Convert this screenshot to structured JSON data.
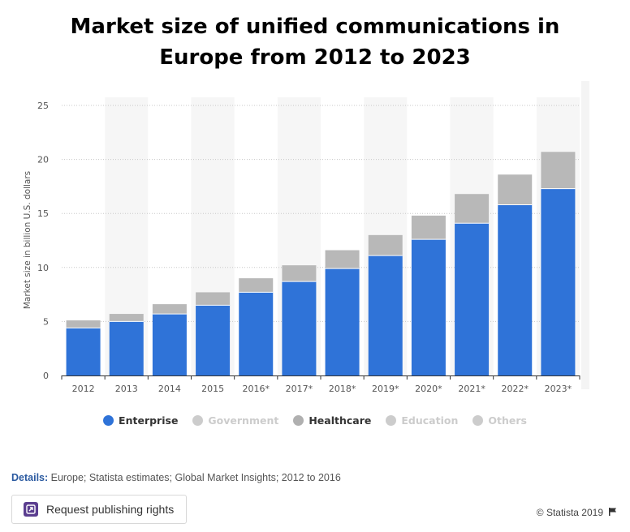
{
  "title_line1": "Market size of unified communications in",
  "title_line2": "Europe from 2012 to 2023",
  "chart_data": {
    "type": "bar",
    "stacked": true,
    "title": "Market size of unified communications in Europe from 2012 to 2023",
    "ylabel": "Market size in billion U.S. dollars",
    "xlabel": "",
    "ylim": [
      0,
      25
    ],
    "yticks": [
      0,
      5,
      10,
      15,
      20,
      25
    ],
    "categories": [
      "2012",
      "2013",
      "2014",
      "2015",
      "2016*",
      "2017*",
      "2018*",
      "2019*",
      "2020*",
      "2021*",
      "2022*",
      "2023*"
    ],
    "series": [
      {
        "name": "Enterprise",
        "color": "#2f73d8",
        "values": [
          4.4,
          5.0,
          5.7,
          6.5,
          7.7,
          8.7,
          9.9,
          11.1,
          12.6,
          14.1,
          15.8,
          17.3
        ]
      },
      {
        "name": "Healthcare",
        "color": "#b8b8b8",
        "values": [
          0.7,
          0.7,
          0.9,
          1.2,
          1.3,
          1.5,
          1.7,
          1.9,
          2.2,
          2.7,
          2.8,
          3.4
        ]
      }
    ],
    "grid": true,
    "legend_position": "bottom"
  },
  "legend": [
    {
      "label": "Enterprise",
      "color": "#2f73d8",
      "active": true
    },
    {
      "label": "Government",
      "color": "#cccccc",
      "active": false
    },
    {
      "label": "Healthcare",
      "color": "#b0b0b0",
      "active": true
    },
    {
      "label": "Education",
      "color": "#cccccc",
      "active": false
    },
    {
      "label": "Others",
      "color": "#cccccc",
      "active": false
    }
  ],
  "details_label": "Details:",
  "details_text": " Europe; Statista estimates; Global Market Insights; 2012 to 2016",
  "request_button_label": "Request publishing rights",
  "copyright": "© Statista 2019"
}
